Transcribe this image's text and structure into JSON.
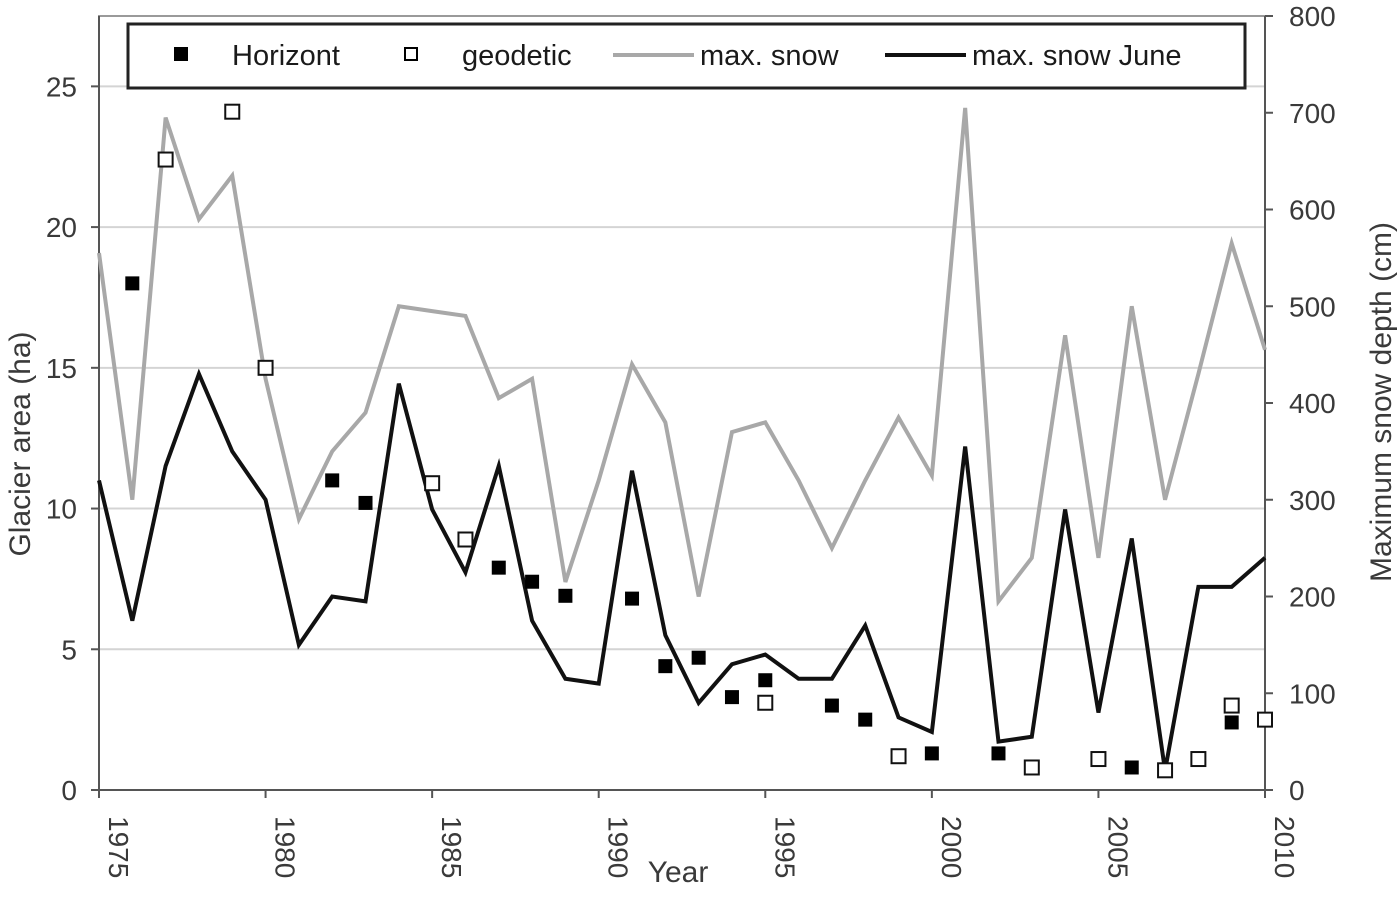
{
  "chart_data": {
    "type": "line",
    "title": "",
    "xlabel": "Year",
    "ylabel": "Glacier area (ha)",
    "y2label": "Maximum snow depth (cm)",
    "xlim": [
      1975,
      2010
    ],
    "ylim": [
      0,
      27.5
    ],
    "y2lim": [
      0,
      800
    ],
    "x_ticks": [
      1975,
      1980,
      1985,
      1990,
      1995,
      2000,
      2005,
      2010
    ],
    "y_ticks": [
      0,
      5,
      10,
      15,
      20,
      25
    ],
    "y2_ticks": [
      0,
      100,
      200,
      300,
      400,
      500,
      600,
      700,
      800
    ],
    "grid": true,
    "legend_position": "top",
    "legend": [
      {
        "label": "Horizont",
        "marker": "filled-square"
      },
      {
        "label": "geodetic",
        "marker": "open-square"
      },
      {
        "label": "max. snow",
        "marker": "line",
        "color": "#a8a8a8"
      },
      {
        "label": "max. snow June",
        "marker": "line",
        "color": "#111111"
      }
    ],
    "series": [
      {
        "name": "Horizont",
        "type": "scatter",
        "axis": "left",
        "marker": "filled-square",
        "color": "#000000",
        "x": [
          1976,
          1979,
          1982,
          1983,
          1985,
          1986,
          1987,
          1988,
          1989,
          1991,
          1992,
          1993,
          1994,
          1995,
          1997,
          1998,
          2000,
          2002,
          2006,
          2009
        ],
        "y": [
          18.0,
          24.1,
          11.0,
          10.2,
          10.9,
          8.9,
          7.9,
          7.4,
          6.9,
          6.8,
          4.4,
          4.7,
          3.3,
          3.9,
          3.0,
          2.5,
          1.3,
          1.3,
          0.8,
          2.4
        ]
      },
      {
        "name": "geodetic",
        "type": "scatter",
        "axis": "left",
        "marker": "open-square",
        "color": "#000000",
        "x": [
          1977,
          1979,
          1980,
          1985,
          1986,
          1995,
          1999,
          2003,
          2005,
          2007,
          2008,
          2009,
          2010
        ],
        "y": [
          22.4,
          24.1,
          15.0,
          10.9,
          8.9,
          3.1,
          1.2,
          0.8,
          1.1,
          0.7,
          1.1,
          3.0,
          2.5
        ]
      },
      {
        "name": "max. snow",
        "type": "line",
        "axis": "right",
        "color": "#a8a8a8",
        "x": [
          1975,
          1976,
          1977,
          1978,
          1979,
          1980,
          1981,
          1982,
          1983,
          1984,
          1985,
          1986,
          1987,
          1988,
          1989,
          1990,
          1991,
          1992,
          1993,
          1994,
          1995,
          1996,
          1997,
          1998,
          1999,
          2000,
          2001,
          2002,
          2003,
          2004,
          2005,
          2006,
          2007,
          2008,
          2009,
          2010
        ],
        "y": [
          555,
          300,
          695,
          590,
          635,
          425,
          280,
          350,
          390,
          500,
          495,
          490,
          405,
          425,
          215,
          320,
          440,
          380,
          200,
          370,
          380,
          320,
          250,
          320,
          385,
          325,
          705,
          195,
          240,
          470,
          240,
          500,
          300,
          430,
          565,
          455
        ]
      },
      {
        "name": "max. snow June",
        "type": "line",
        "axis": "right",
        "color": "#111111",
        "x": [
          1975,
          1976,
          1977,
          1978,
          1979,
          1980,
          1981,
          1982,
          1983,
          1984,
          1985,
          1986,
          1987,
          1988,
          1989,
          1990,
          1991,
          1992,
          1993,
          1994,
          1995,
          1996,
          1997,
          1998,
          1999,
          2000,
          2001,
          2002,
          2003,
          2004,
          2005,
          2006,
          2007,
          2008,
          2009,
          2010
        ],
        "y": [
          320,
          175,
          335,
          430,
          350,
          300,
          150,
          200,
          195,
          420,
          290,
          225,
          335,
          175,
          115,
          110,
          330,
          160,
          90,
          130,
          140,
          115,
          115,
          170,
          75,
          60,
          355,
          50,
          55,
          290,
          80,
          260,
          20,
          210,
          210,
          240
        ]
      }
    ]
  }
}
